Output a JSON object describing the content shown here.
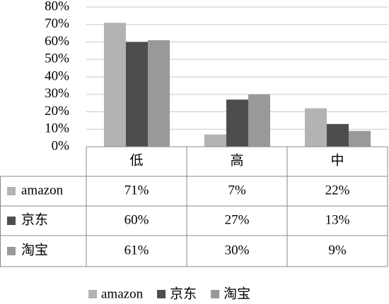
{
  "chart_data": {
    "type": "bar",
    "categories": [
      "低",
      "高",
      "中"
    ],
    "series": [
      {
        "name": "amazon",
        "color": "#b3b3b3",
        "values": [
          71,
          7,
          22
        ],
        "value_labels": [
          "71%",
          "7%",
          "22%"
        ]
      },
      {
        "name": "京东",
        "color": "#4d4d4d",
        "values": [
          60,
          27,
          13
        ],
        "value_labels": [
          "60%",
          "27%",
          "13%"
        ]
      },
      {
        "name": "淘宝",
        "color": "#999999",
        "values": [
          61,
          30,
          9
        ],
        "value_labels": [
          "61%",
          "30%",
          "9%"
        ]
      }
    ],
    "ylim": [
      0,
      80
    ],
    "yticks": [
      {
        "value": 0,
        "label": "0%"
      },
      {
        "value": 10,
        "label": "10%"
      },
      {
        "value": 20,
        "label": "20%"
      },
      {
        "value": 30,
        "label": "30%"
      },
      {
        "value": 40,
        "label": "40%"
      },
      {
        "value": 50,
        "label": "50%"
      },
      {
        "value": 60,
        "label": "60%"
      },
      {
        "value": 70,
        "label": "70%"
      },
      {
        "value": 80,
        "label": "80%"
      }
    ],
    "grid": true,
    "legend": "bottom"
  }
}
